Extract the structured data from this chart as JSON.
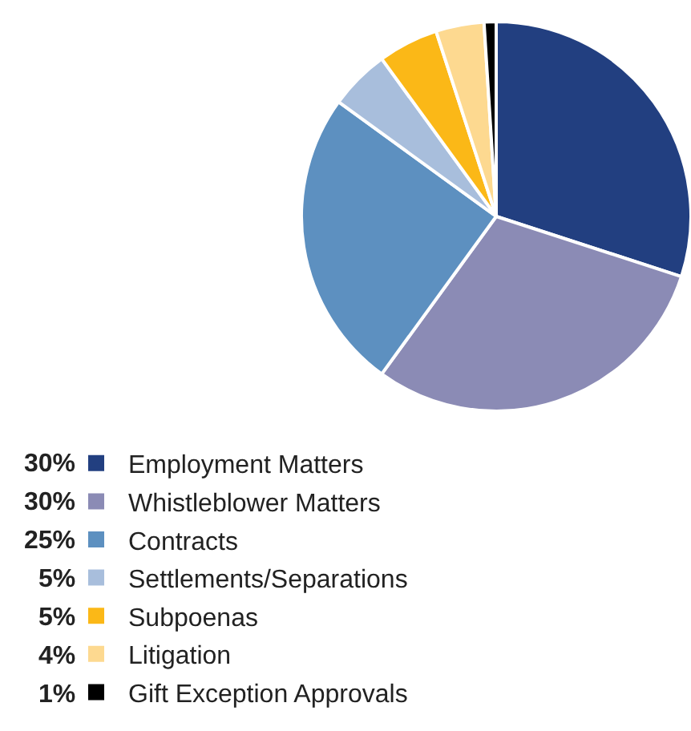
{
  "chart_data": {
    "type": "pie",
    "categories": [
      "Employment Matters",
      "Whistleblower Matters",
      "Contracts",
      "Settlements/Separations",
      "Subpoenas",
      "Litigation",
      "Gift Exception Approvals"
    ],
    "values": [
      30,
      30,
      25,
      5,
      5,
      4,
      1
    ],
    "colors": [
      "#223f80",
      "#8b8bb5",
      "#5d90c0",
      "#a8bedc",
      "#fbb817",
      "#fdd990",
      "#000000"
    ],
    "value_labels": [
      "30%",
      "30%",
      "25%",
      "5%",
      "5%",
      "4%",
      "1%"
    ],
    "legend": "bottom left"
  }
}
